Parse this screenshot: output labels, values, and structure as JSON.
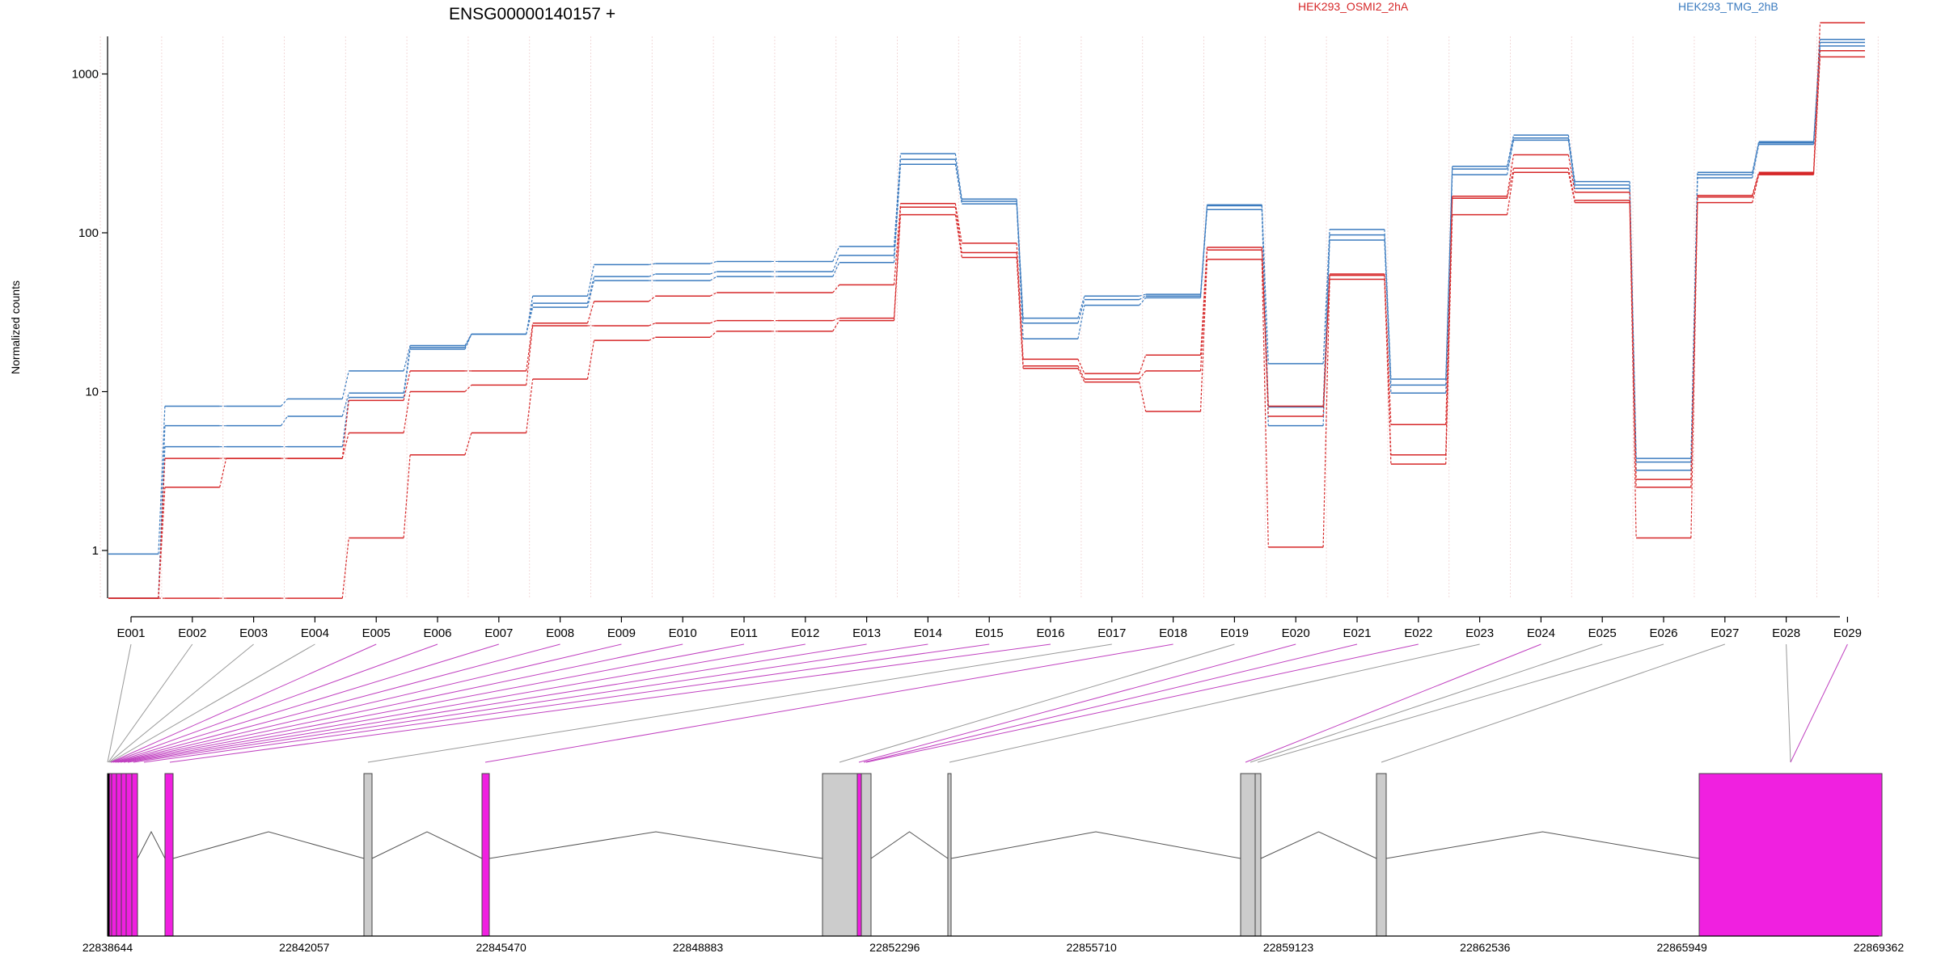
{
  "chart_data": {
    "type": "line",
    "title": "ENSG00000140157 +",
    "ylabel": "Normalized counts",
    "yscale": "log",
    "ylim": [
      0.5,
      2500
    ],
    "yticks": [
      1,
      10,
      100,
      1000
    ],
    "ytick_labels": [
      "1",
      "10",
      "100",
      "1000"
    ],
    "grid": "vertical dotted lines at exon boundaries",
    "legend": [
      {
        "name": "HEK293_OSMI2_2hA",
        "color": "#d62728",
        "placement": "top-center-right"
      },
      {
        "name": "HEK293_TMG_2hB",
        "color": "#3b7bbf",
        "placement": "top-right"
      }
    ],
    "categories": [
      "E001",
      "E002",
      "E003",
      "E004",
      "E005",
      "E006",
      "E007",
      "E008",
      "E009",
      "E010",
      "E011",
      "E012",
      "E013",
      "E014",
      "E015",
      "E016",
      "E017",
      "E018",
      "E019",
      "E020",
      "E021",
      "E022",
      "E023",
      "E024",
      "E025",
      "E026",
      "E027",
      "E028",
      "E029"
    ],
    "series": [
      {
        "group": "HEK293_TMG_2hB",
        "color": "#3b7bbf",
        "values": [
          0.95,
          8.1,
          8.1,
          9,
          13.5,
          19.5,
          23,
          40,
          63,
          64,
          66,
          66,
          82,
          315,
          163,
          29,
          40,
          41,
          150,
          15,
          105,
          12,
          262,
          412,
          210,
          3.8,
          240,
          375,
          1650
        ]
      },
      {
        "group": "HEK293_TMG_2hB",
        "color": "#3b7bbf",
        "values": [
          0.5,
          6.1,
          6.1,
          7,
          9.8,
          19,
          23,
          36,
          53,
          55,
          57,
          57,
          72,
          290,
          158,
          27,
          38,
          40,
          148,
          8,
          97,
          11,
          252,
          395,
          200,
          3.6,
          232,
          368,
          1500
        ]
      },
      {
        "group": "HEK293_TMG_2hB",
        "color": "#3b7bbf",
        "values": [
          0.5,
          4.5,
          4.5,
          4.5,
          9.2,
          18.5,
          23,
          34,
          50,
          50,
          53,
          53,
          65,
          270,
          152,
          21.5,
          35,
          39,
          140,
          6.1,
          90,
          9.8,
          232,
          383,
          190,
          3.2,
          222,
          360,
          1580
        ]
      },
      {
        "group": "HEK293_OSMI2_2hA",
        "color": "#d62728",
        "values": [
          0.5,
          3.8,
          3.8,
          3.8,
          8.8,
          13.5,
          13.5,
          27,
          37,
          40,
          42,
          42,
          47,
          153,
          86,
          16,
          13,
          17,
          81,
          8.1,
          55,
          6.2,
          170,
          310,
          180,
          2.8,
          172,
          240,
          2100
        ]
      },
      {
        "group": "HEK293_OSMI2_2hA",
        "color": "#d62728",
        "values": [
          0.5,
          2.5,
          3.8,
          3.8,
          5.5,
          10,
          11,
          26,
          26,
          27,
          28,
          28,
          29,
          145,
          75,
          14.5,
          12,
          13.5,
          78,
          7,
          54,
          4,
          165,
          255,
          160,
          2.5,
          168,
          236,
          1400
        ]
      },
      {
        "group": "HEK293_OSMI2_2hA",
        "color": "#d62728",
        "values": [
          0.5,
          0.5,
          0.5,
          0.5,
          1.2,
          4,
          5.5,
          12,
          21,
          22,
          24,
          24,
          28,
          130,
          70,
          14,
          11.5,
          7.5,
          68,
          1.05,
          51,
          3.5,
          130,
          240,
          155,
          1.2,
          155,
          232,
          1280
        ]
      }
    ],
    "gene_model": {
      "coordinate_labels": [
        "22838644",
        "22842057",
        "22845470",
        "22848883",
        "22852296",
        "22855710",
        "22859123",
        "22862536",
        "22865949",
        "22869362"
      ],
      "exon_colors": {
        "significant": "#f020e0",
        "normal": "#cccccc"
      }
    }
  }
}
